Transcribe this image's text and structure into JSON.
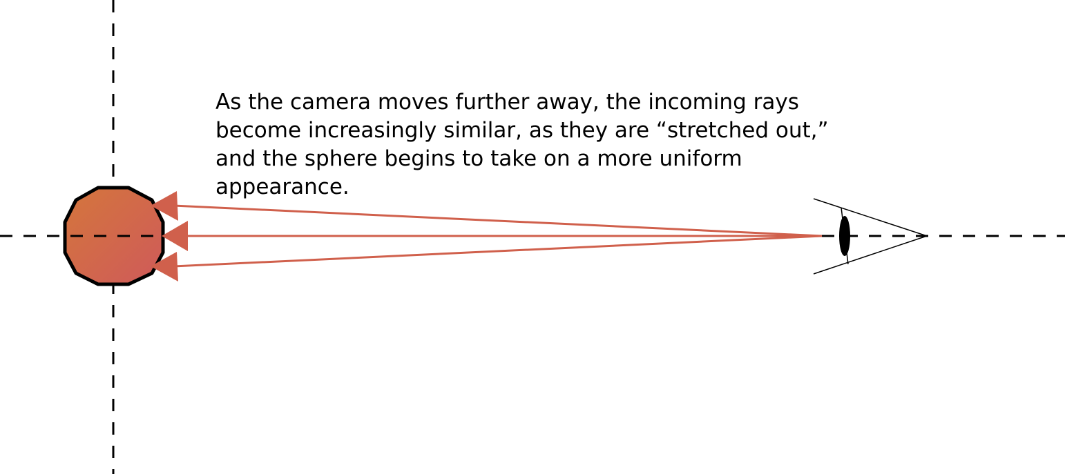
{
  "caption": {
    "lines": [
      "As the camera moves further away, the incoming rays",
      "become increasingly similar, as they are “stretched out,”",
      "and the sphere begins to take on a more uniform",
      "appearance."
    ]
  },
  "colors": {
    "ray": "#d0604c",
    "sphere_light": "#d4763c",
    "sphere_dark": "#cf5a5a",
    "outline": "#000000",
    "background": "#ffffff"
  },
  "icons": {
    "camera": "eye-icon"
  }
}
